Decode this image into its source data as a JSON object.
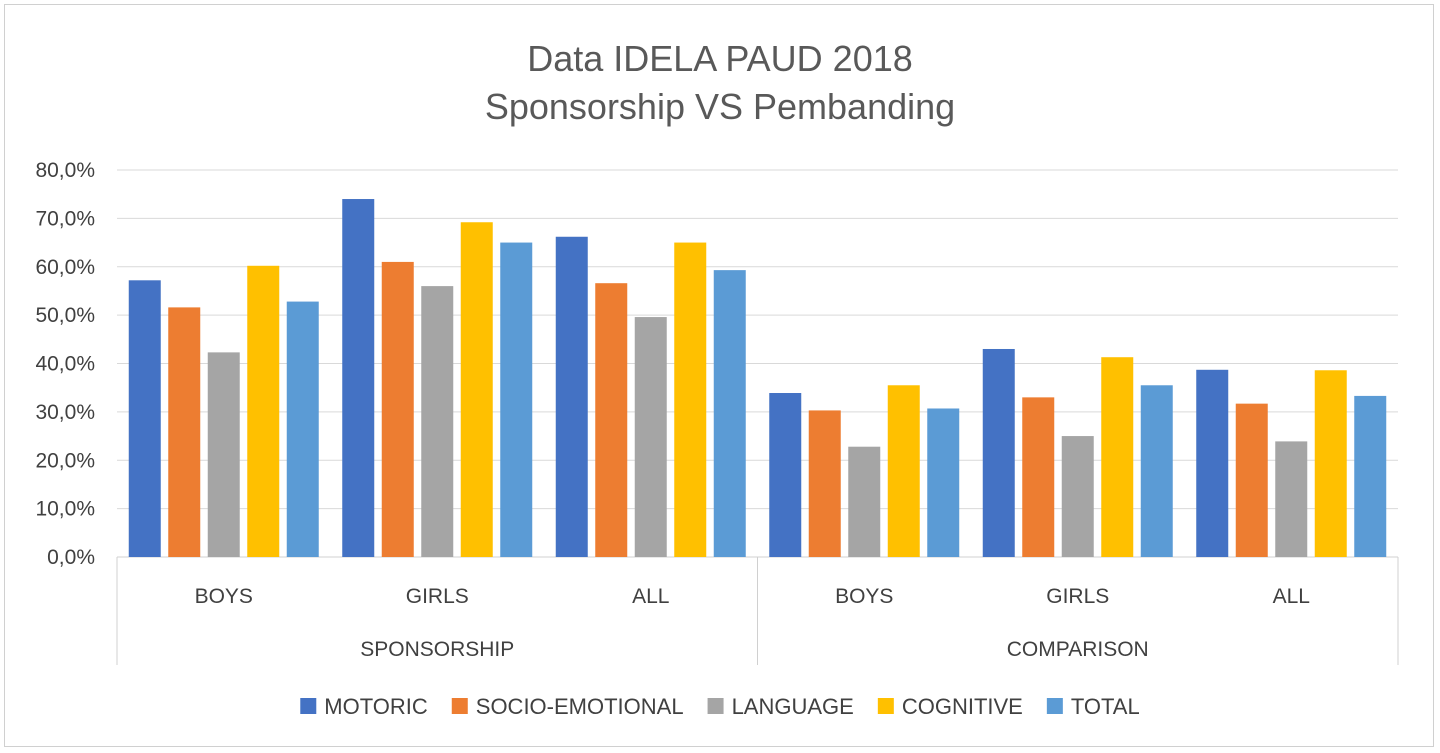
{
  "chart_data": {
    "type": "bar",
    "title_lines": [
      "Data IDELA PAUD 2018",
      "Sponsorship VS Pembanding"
    ],
    "groups": [
      {
        "label": "SPONSORSHIP",
        "categories": [
          "BOYS",
          "GIRLS",
          "ALL"
        ]
      },
      {
        "label": "COMPARISON",
        "categories": [
          "BOYS",
          "GIRLS",
          "ALL"
        ]
      }
    ],
    "y_ticks": [
      "0,0%",
      "10,0%",
      "20,0%",
      "30,0%",
      "40,0%",
      "50,0%",
      "60,0%",
      "70,0%",
      "80,0%"
    ],
    "ylim": [
      0,
      80
    ],
    "grid": true,
    "legend_position": "bottom",
    "series": [
      {
        "name": "MOTORIC",
        "color": "#4472C4",
        "values": [
          57.2,
          74.0,
          66.2,
          33.9,
          43.0,
          38.7
        ]
      },
      {
        "name": "SOCIO-EMOTIONAL",
        "color": "#ED7D31",
        "values": [
          51.6,
          61.0,
          56.6,
          30.3,
          33.0,
          31.7
        ]
      },
      {
        "name": "LANGUAGE",
        "color": "#A5A5A5",
        "values": [
          42.3,
          56.0,
          49.6,
          22.8,
          25.0,
          23.9
        ]
      },
      {
        "name": "COGNITIVE",
        "color": "#FFC000",
        "values": [
          60.2,
          69.2,
          65.0,
          35.5,
          41.3,
          38.6
        ]
      },
      {
        "name": "TOTAL",
        "color": "#5B9BD5",
        "values": [
          52.8,
          65.0,
          59.3,
          30.7,
          35.5,
          33.3
        ]
      }
    ]
  }
}
